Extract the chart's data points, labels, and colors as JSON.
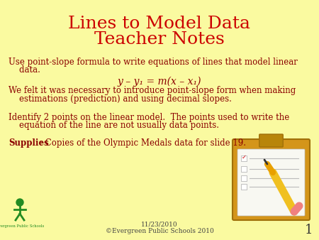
{
  "background_color": "#FAFAA0",
  "title_line1": "Lines to Model Data",
  "title_line2": "Teacher Notes",
  "title_color": "#CC0000",
  "title_fontsize": 18,
  "body_color": "#8B0000",
  "body_fontsize": 8.5,
  "footer_date": "11/23/2010",
  "footer_copy": "©Evergreen Public Schools 2010",
  "footer_color": "#444444",
  "footer_fontsize": 6.5,
  "slide_number": "1",
  "slide_number_color": "#333333",
  "slide_number_fontsize": 13,
  "para1_line1": "Use point-slope formula to write equations of lines that model linear",
  "para1_line2": "    data.",
  "formula": "y – y₁ = m(x – x₁)",
  "para2_line1": "We felt it was necessary to introduce point-slope form when making",
  "para2_line2": "    estimations (prediction) and using decimal slopes.",
  "para3_line1": "Identify 2 points on the linear model.  The points used to write the",
  "para3_line2": "    equation of the line are not usually data points.",
  "para4_bold": "Supplies",
  "para4_rest": ": Copies of the Olympic Medals data for slide 19."
}
